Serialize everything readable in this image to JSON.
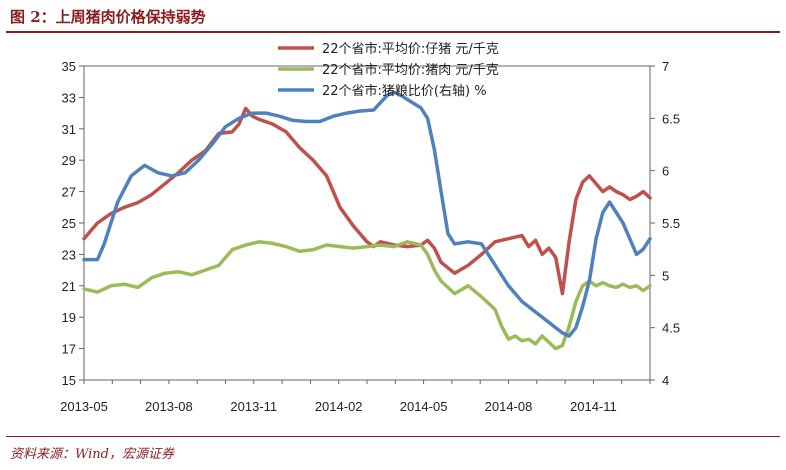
{
  "figure": {
    "title": "图 2：上周猪肉价格保持弱势",
    "source": "资料来源：Wind，宏源证券"
  },
  "colors": {
    "pig": "#c0504d",
    "pork": "#9bbb59",
    "ratio": "#4f81bd",
    "accent": "#8b1c1c"
  },
  "chart_data": {
    "type": "line",
    "grid": false,
    "legend_position": "top-right",
    "x_tick_labels": [
      "2013-05",
      "2013-08",
      "2013-11",
      "2014-02",
      "2014-05",
      "2014-08",
      "2014-11"
    ],
    "y_left": {
      "ticks": [
        "35",
        "33",
        "31",
        "29",
        "27",
        "25",
        "23",
        "21",
        "19",
        "17",
        "15"
      ],
      "ylim": [
        15,
        35
      ]
    },
    "y_right": {
      "ticks": [
        "7",
        "6.5",
        "6",
        "5.5",
        "5",
        "4.5",
        "4"
      ],
      "ylim": [
        4,
        7
      ]
    },
    "x_range": [
      0,
      84
    ],
    "series": [
      {
        "name": "22个省市:平均价:仔猪 元/千克",
        "axis": "left",
        "color_key": "pig",
        "points": [
          [
            0,
            24.0
          ],
          [
            2,
            25.0
          ],
          [
            4,
            25.6
          ],
          [
            6,
            26.0
          ],
          [
            8,
            26.3
          ],
          [
            10,
            26.8
          ],
          [
            12,
            27.5
          ],
          [
            14,
            28.2
          ],
          [
            16,
            29.0
          ],
          [
            18,
            29.6
          ],
          [
            20,
            30.7
          ],
          [
            22,
            30.8
          ],
          [
            23,
            31.3
          ],
          [
            24,
            32.3
          ],
          [
            25,
            31.8
          ],
          [
            26,
            31.6
          ],
          [
            28,
            31.3
          ],
          [
            30,
            30.8
          ],
          [
            32,
            29.8
          ],
          [
            34,
            29.0
          ],
          [
            36,
            28.0
          ],
          [
            37,
            27.0
          ],
          [
            38,
            26.0
          ],
          [
            40,
            24.8
          ],
          [
            42,
            23.8
          ],
          [
            43,
            23.5
          ],
          [
            44,
            23.8
          ],
          [
            46,
            23.6
          ],
          [
            48,
            23.5
          ],
          [
            50,
            23.6
          ],
          [
            51,
            23.9
          ],
          [
            52,
            23.4
          ],
          [
            53,
            22.5
          ],
          [
            55,
            21.8
          ],
          [
            57,
            22.3
          ],
          [
            59,
            23.0
          ],
          [
            61,
            23.8
          ],
          [
            63,
            24.0
          ],
          [
            65,
            24.2
          ],
          [
            66,
            23.5
          ],
          [
            67,
            23.9
          ],
          [
            68,
            23.0
          ],
          [
            69,
            23.4
          ],
          [
            70,
            22.8
          ],
          [
            71,
            20.5
          ],
          [
            72,
            23.8
          ],
          [
            73,
            26.5
          ],
          [
            74,
            27.6
          ],
          [
            75,
            28.0
          ],
          [
            76,
            27.5
          ],
          [
            77,
            27.0
          ],
          [
            78,
            27.3
          ],
          [
            79,
            27.0
          ],
          [
            80,
            26.8
          ],
          [
            81,
            26.5
          ],
          [
            82,
            26.7
          ],
          [
            83,
            27.0
          ],
          [
            84,
            26.6
          ]
        ]
      },
      {
        "name": "22个省市:平均价:猪肉 元/千克",
        "axis": "left",
        "color_key": "pork",
        "points": [
          [
            0,
            20.8
          ],
          [
            2,
            20.6
          ],
          [
            4,
            21.0
          ],
          [
            6,
            21.1
          ],
          [
            8,
            20.9
          ],
          [
            10,
            21.5
          ],
          [
            12,
            21.8
          ],
          [
            14,
            21.9
          ],
          [
            16,
            21.7
          ],
          [
            18,
            22.0
          ],
          [
            20,
            22.3
          ],
          [
            22,
            23.3
          ],
          [
            24,
            23.6
          ],
          [
            26,
            23.8
          ],
          [
            28,
            23.7
          ],
          [
            30,
            23.5
          ],
          [
            32,
            23.2
          ],
          [
            34,
            23.3
          ],
          [
            36,
            23.6
          ],
          [
            38,
            23.5
          ],
          [
            40,
            23.4
          ],
          [
            42,
            23.5
          ],
          [
            44,
            23.6
          ],
          [
            46,
            23.5
          ],
          [
            48,
            23.8
          ],
          [
            50,
            23.6
          ],
          [
            51,
            23.0
          ],
          [
            52,
            22.0
          ],
          [
            53,
            21.3
          ],
          [
            55,
            20.5
          ],
          [
            57,
            21.0
          ],
          [
            59,
            20.3
          ],
          [
            61,
            19.5
          ],
          [
            62,
            18.4
          ],
          [
            63,
            17.6
          ],
          [
            64,
            17.8
          ],
          [
            65,
            17.5
          ],
          [
            66,
            17.6
          ],
          [
            67,
            17.3
          ],
          [
            68,
            17.8
          ],
          [
            69,
            17.4
          ],
          [
            70,
            17.0
          ],
          [
            71,
            17.2
          ],
          [
            72,
            18.4
          ],
          [
            73,
            20.0
          ],
          [
            74,
            21.0
          ],
          [
            75,
            21.3
          ],
          [
            76,
            21.0
          ],
          [
            77,
            21.2
          ],
          [
            78,
            21.0
          ],
          [
            79,
            20.9
          ],
          [
            80,
            21.1
          ],
          [
            81,
            20.9
          ],
          [
            82,
            21.0
          ],
          [
            83,
            20.7
          ],
          [
            84,
            21.0
          ]
        ]
      },
      {
        "name": "22个省市:猪粮比价(右轴) %",
        "axis": "right",
        "color_key": "ratio",
        "points": [
          [
            0,
            5.15
          ],
          [
            2,
            5.15
          ],
          [
            3,
            5.3
          ],
          [
            5,
            5.7
          ],
          [
            7,
            5.95
          ],
          [
            9,
            6.05
          ],
          [
            11,
            5.98
          ],
          [
            13,
            5.95
          ],
          [
            15,
            5.98
          ],
          [
            17,
            6.1
          ],
          [
            19,
            6.25
          ],
          [
            21,
            6.42
          ],
          [
            23,
            6.5
          ],
          [
            25,
            6.55
          ],
          [
            27,
            6.55
          ],
          [
            29,
            6.52
          ],
          [
            31,
            6.48
          ],
          [
            33,
            6.47
          ],
          [
            35,
            6.47
          ],
          [
            37,
            6.52
          ],
          [
            39,
            6.55
          ],
          [
            41,
            6.57
          ],
          [
            43,
            6.58
          ],
          [
            44,
            6.65
          ],
          [
            45,
            6.72
          ],
          [
            46,
            6.75
          ],
          [
            47,
            6.72
          ],
          [
            48,
            6.68
          ],
          [
            50,
            6.6
          ],
          [
            51,
            6.5
          ],
          [
            52,
            6.2
          ],
          [
            53,
            5.8
          ],
          [
            54,
            5.4
          ],
          [
            55,
            5.3
          ],
          [
            57,
            5.32
          ],
          [
            59,
            5.3
          ],
          [
            61,
            5.1
          ],
          [
            63,
            4.9
          ],
          [
            65,
            4.75
          ],
          [
            67,
            4.65
          ],
          [
            69,
            4.55
          ],
          [
            70,
            4.5
          ],
          [
            71,
            4.45
          ],
          [
            72,
            4.42
          ],
          [
            73,
            4.5
          ],
          [
            74,
            4.7
          ],
          [
            75,
            4.95
          ],
          [
            76,
            5.35
          ],
          [
            77,
            5.6
          ],
          [
            78,
            5.7
          ],
          [
            79,
            5.6
          ],
          [
            80,
            5.5
          ],
          [
            81,
            5.35
          ],
          [
            82,
            5.2
          ],
          [
            83,
            5.25
          ],
          [
            84,
            5.35
          ]
        ]
      }
    ]
  }
}
